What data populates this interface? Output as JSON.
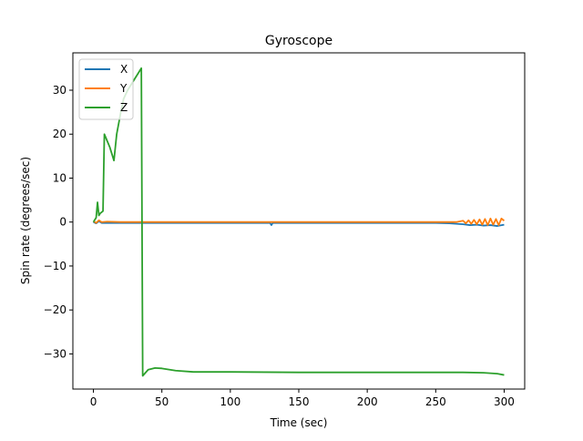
{
  "chart_data": {
    "type": "line",
    "title": "Gyroscope",
    "xlabel": "Time (sec)",
    "ylabel": "Spin rate (degrees/sec)",
    "xlim": [
      -15,
      315
    ],
    "ylim": [
      -38,
      38.5
    ],
    "xticks": [
      0,
      50,
      100,
      150,
      200,
      250,
      300
    ],
    "yticks": [
      -30,
      -20,
      -10,
      0,
      10,
      20,
      30
    ],
    "xtick_labels": [
      "0",
      "50",
      "100",
      "150",
      "200",
      "250",
      "300"
    ],
    "ytick_labels": [
      "−30",
      "−20",
      "−10",
      "0",
      "10",
      "20",
      "30"
    ],
    "grid": false,
    "legend_position": "top-left",
    "series": [
      {
        "name": "X",
        "color": "#1f77b4",
        "x": [
          0,
          2,
          4,
          6,
          10,
          20,
          40,
          60,
          80,
          100,
          120,
          129,
          130,
          131,
          150,
          180,
          200,
          230,
          250,
          260,
          265,
          270,
          275,
          280,
          285,
          290,
          295,
          300
        ],
        "y": [
          0.0,
          -0.3,
          0.2,
          -0.2,
          -0.2,
          -0.2,
          -0.2,
          -0.2,
          -0.2,
          -0.2,
          -0.2,
          -0.2,
          -0.7,
          -0.2,
          -0.2,
          -0.2,
          -0.2,
          -0.2,
          -0.2,
          -0.3,
          -0.4,
          -0.5,
          -0.7,
          -0.6,
          -0.8,
          -0.7,
          -0.9,
          -0.6
        ]
      },
      {
        "name": "Y",
        "color": "#ff7f0e",
        "x": [
          0,
          2,
          4,
          6,
          10,
          20,
          40,
          60,
          80,
          100,
          150,
          200,
          250,
          265,
          270,
          272,
          274,
          276,
          278,
          280,
          282,
          284,
          286,
          288,
          290,
          292,
          294,
          296,
          298,
          300
        ],
        "y": [
          0.2,
          -0.2,
          0.4,
          0.0,
          0.1,
          0.0,
          0.0,
          0.0,
          0.0,
          0.0,
          0.0,
          0.0,
          0.0,
          0.0,
          0.3,
          -0.3,
          0.4,
          -0.4,
          0.5,
          -0.5,
          0.6,
          -0.6,
          0.7,
          -0.7,
          0.8,
          -0.6,
          0.7,
          -0.7,
          0.8,
          0.3
        ]
      },
      {
        "name": "Z",
        "color": "#2ca02c",
        "x": [
          0,
          2,
          3,
          4,
          5,
          7,
          8,
          10,
          12,
          15,
          17,
          20,
          22,
          25,
          28,
          32,
          35,
          35.5,
          36,
          40,
          45,
          50,
          60,
          73,
          80,
          100,
          150,
          200,
          250,
          270,
          285,
          295,
          300
        ],
        "y": [
          0.0,
          1.0,
          4.5,
          1.5,
          2.0,
          2.5,
          20.0,
          18.5,
          17.0,
          14.0,
          20.0,
          25.0,
          28.0,
          30.0,
          31.5,
          33.5,
          35.0,
          0.0,
          -35.0,
          -33.6,
          -33.2,
          -33.3,
          -33.8,
          -34.1,
          -34.1,
          -34.1,
          -34.2,
          -34.2,
          -34.2,
          -34.2,
          -34.3,
          -34.5,
          -34.8
        ]
      }
    ]
  }
}
